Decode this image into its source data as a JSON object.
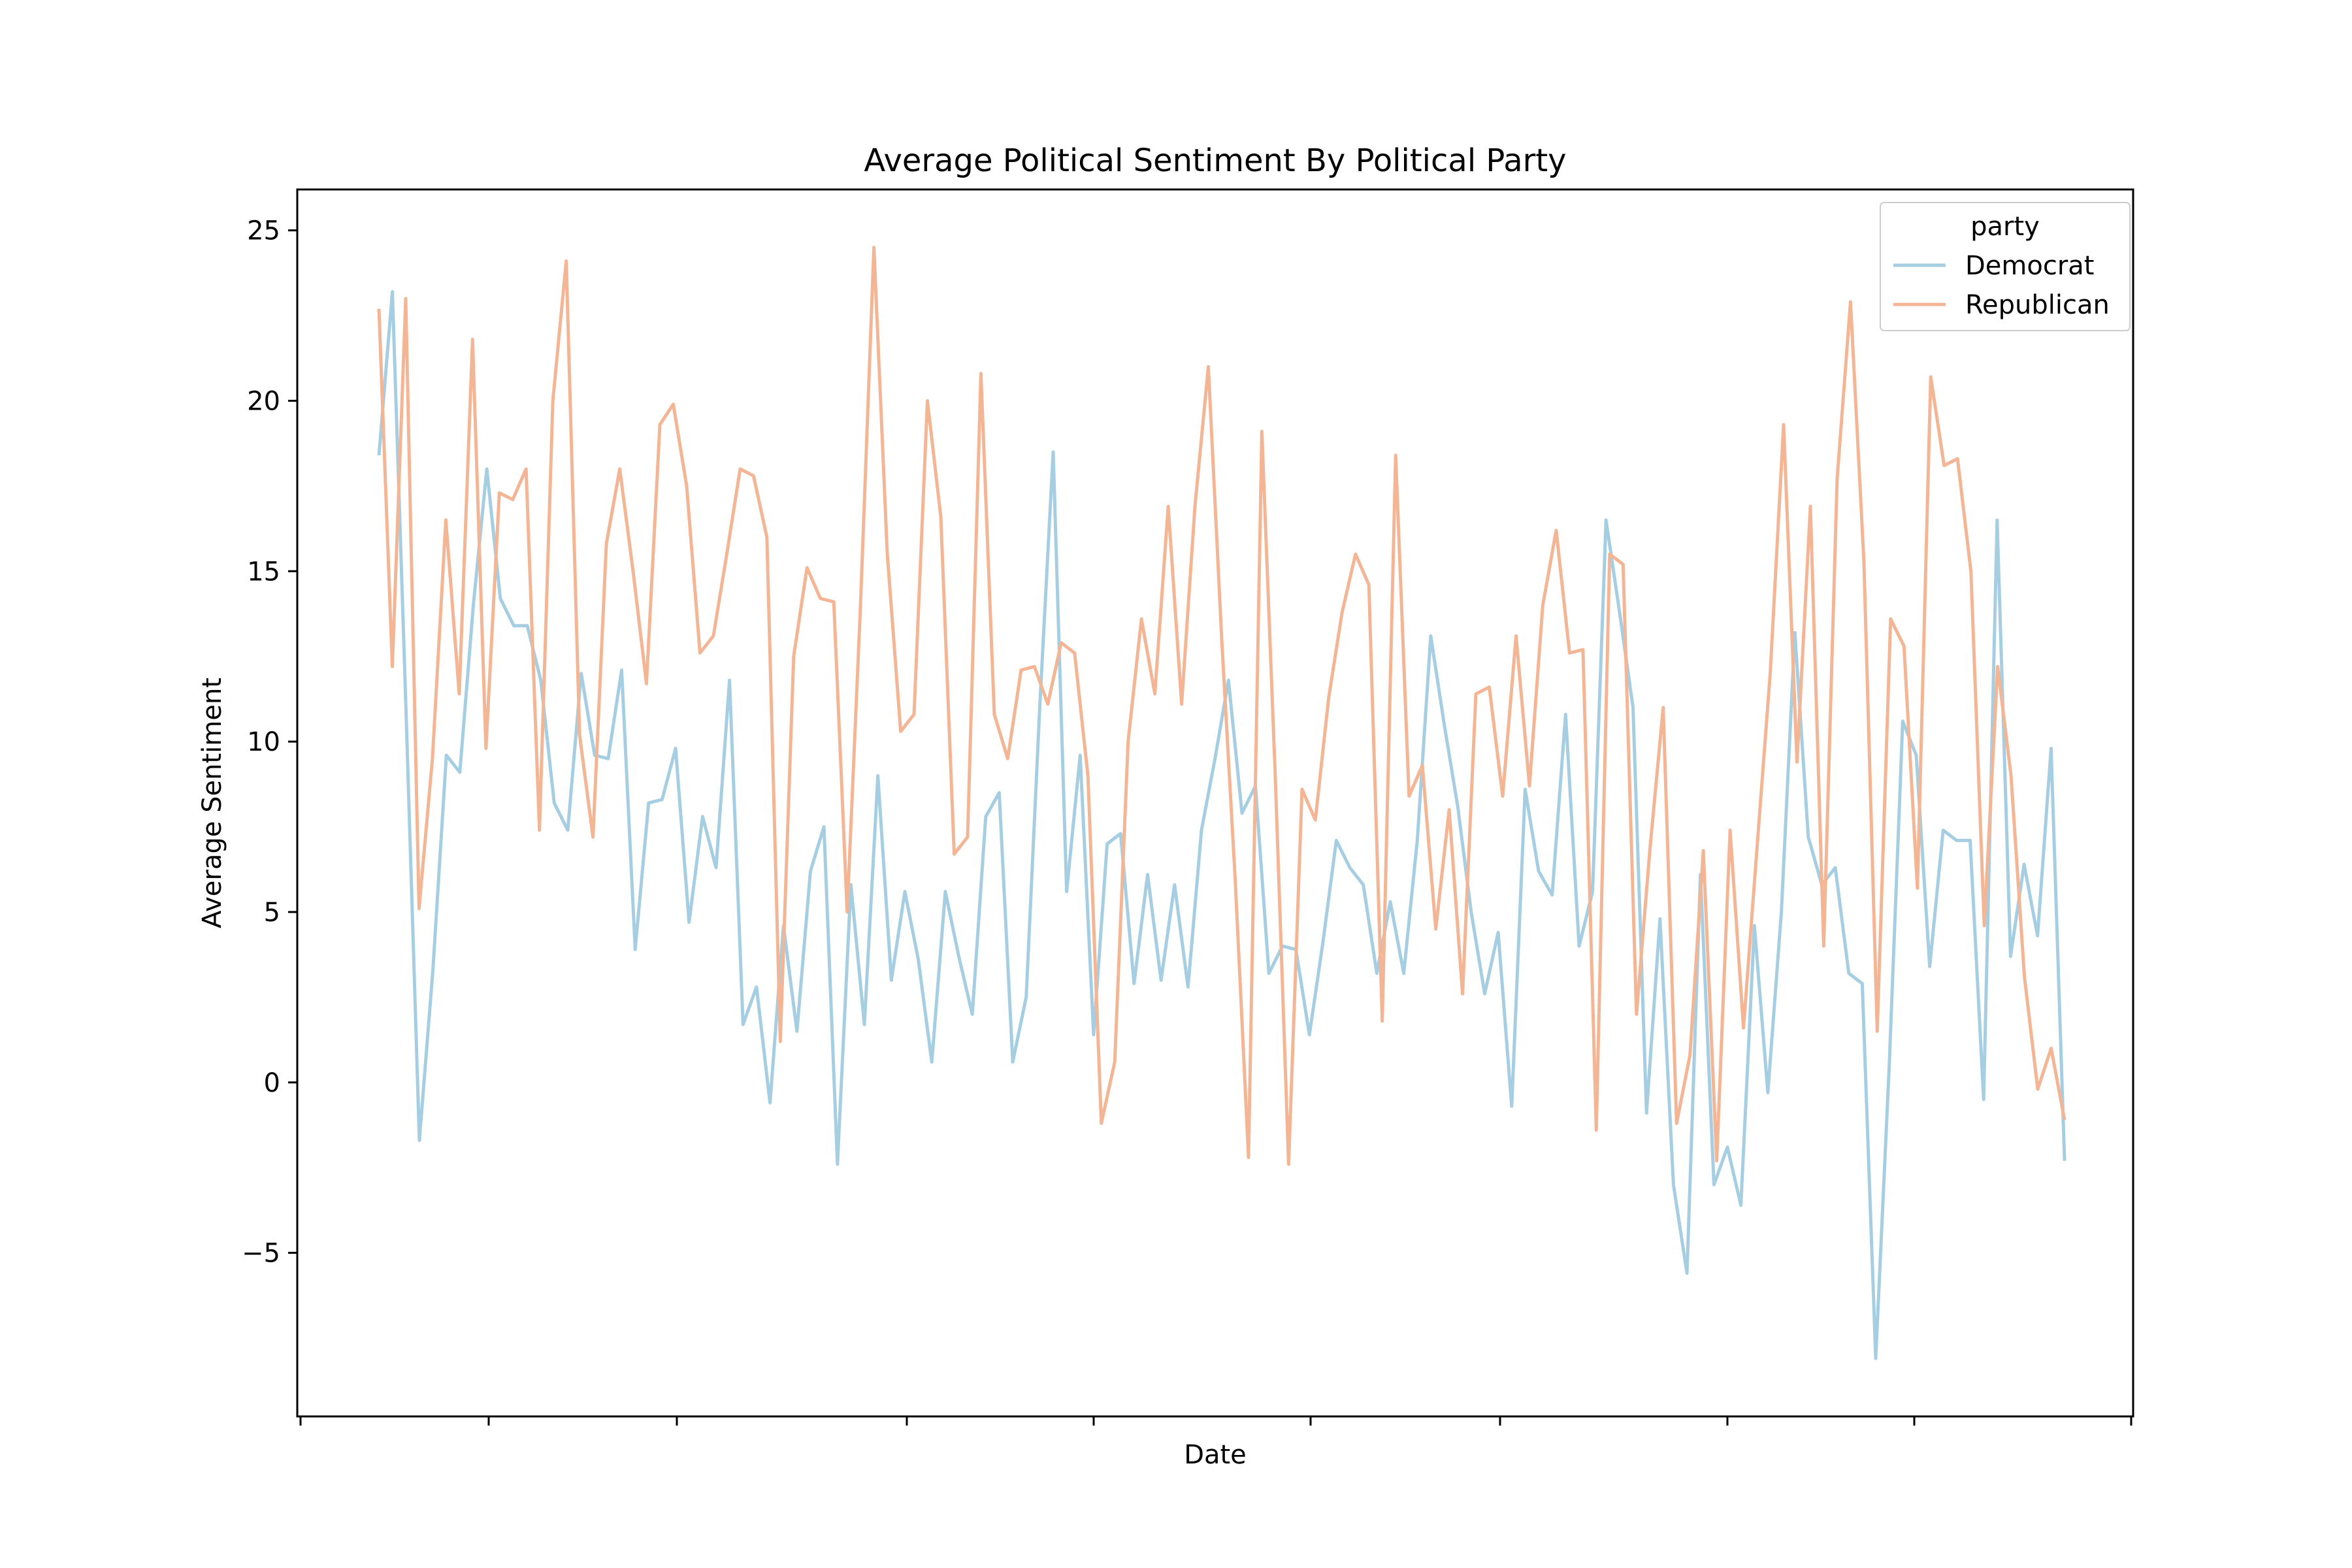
{
  "chart_data": {
    "type": "line",
    "title": "Average Political Sentiment By Political Party",
    "xlabel": "Date",
    "ylabel": "Average Sentiment",
    "ylim": [
      -9.8,
      26.2
    ],
    "yticks": [
      -5,
      0,
      5,
      10,
      15,
      20,
      25
    ],
    "ytick_labels": [
      "−5",
      "0",
      "5",
      "10",
      "15",
      "20",
      "25"
    ],
    "grid": false,
    "legend": {
      "title": "party",
      "placement": "top-right"
    },
    "series": [
      {
        "name": "Democrat",
        "color": "#a6cee3",
        "values": [
          18.4,
          23.2,
          11.0,
          -1.7,
          3.3,
          9.6,
          9.1,
          14.0,
          18.0,
          14.2,
          13.4,
          13.4,
          11.8,
          8.2,
          7.4,
          12.0,
          9.6,
          9.5,
          12.1,
          3.9,
          8.2,
          8.3,
          9.8,
          4.7,
          7.8,
          6.3,
          11.8,
          1.7,
          2.8,
          -0.6,
          4.6,
          1.5,
          6.2,
          7.5,
          -2.4,
          5.8,
          1.7,
          9.0,
          3.0,
          5.6,
          3.6,
          0.6,
          5.6,
          3.7,
          2.0,
          7.8,
          8.5,
          0.6,
          2.5,
          11.0,
          18.5,
          5.6,
          9.6,
          1.4,
          7.0,
          7.3,
          2.9,
          6.1,
          3.0,
          5.8,
          2.8,
          7.4,
          9.5,
          11.8,
          7.9,
          8.7,
          3.2,
          4.0,
          3.9,
          1.4,
          4.1,
          7.1,
          6.3,
          5.8,
          3.2,
          5.3,
          3.2,
          7.1,
          13.1,
          10.5,
          8.1,
          5.0,
          2.6,
          4.4,
          -0.7,
          8.6,
          6.2,
          5.5,
          10.8,
          4.0,
          5.6,
          16.5,
          13.8,
          11.0,
          -0.9,
          4.8,
          -3.0,
          -5.6,
          6.1,
          -3.0,
          -1.9,
          -3.6,
          4.6,
          -0.3,
          5.0,
          13.2,
          7.2,
          5.8,
          6.3,
          3.2,
          2.9,
          -8.1,
          0.5,
          10.6,
          9.6,
          3.4,
          7.4,
          7.1,
          7.1,
          -0.5,
          16.5,
          3.7,
          6.4,
          4.3,
          9.8,
          -2.3
        ]
      },
      {
        "name": "Republican",
        "color": "#f4b594",
        "values": [
          22.7,
          12.2,
          23.0,
          5.1,
          9.5,
          16.5,
          11.4,
          21.8,
          9.8,
          17.3,
          17.1,
          18.0,
          7.4,
          20.0,
          24.1,
          10.2,
          7.2,
          15.8,
          18.0,
          15.0,
          11.7,
          19.3,
          19.9,
          17.5,
          12.6,
          13.1,
          15.5,
          18.0,
          17.8,
          16.0,
          1.2,
          12.5,
          15.1,
          14.2,
          14.1,
          5.0,
          14.0,
          24.5,
          15.5,
          10.3,
          10.8,
          20.0,
          16.6,
          6.7,
          7.2,
          20.8,
          10.8,
          9.5,
          12.1,
          12.2,
          11.1,
          12.9,
          12.6,
          9.0,
          -1.2,
          0.6,
          10.0,
          13.6,
          11.4,
          16.9,
          11.1,
          16.9,
          21.0,
          13.0,
          6.0,
          -2.2,
          19.1,
          9.0,
          -2.4,
          8.6,
          7.7,
          11.3,
          13.8,
          15.5,
          14.6,
          1.8,
          18.4,
          8.4,
          9.3,
          4.5,
          8.0,
          2.6,
          11.4,
          11.6,
          8.4,
          13.1,
          8.7,
          14.0,
          16.2,
          12.6,
          12.7,
          -1.4,
          15.5,
          15.2,
          2.0,
          6.8,
          11.0,
          -1.2,
          0.8,
          6.8,
          -2.3,
          7.4,
          1.6,
          6.8,
          12.0,
          19.3,
          9.4,
          16.9,
          4.0,
          17.7,
          22.9,
          15.3,
          1.5,
          13.6,
          12.8,
          5.7,
          20.7,
          18.1,
          18.3,
          15.0,
          4.6,
          12.2,
          9.0,
          3.1,
          -0.2,
          1.0,
          -1.1
        ]
      }
    ]
  }
}
